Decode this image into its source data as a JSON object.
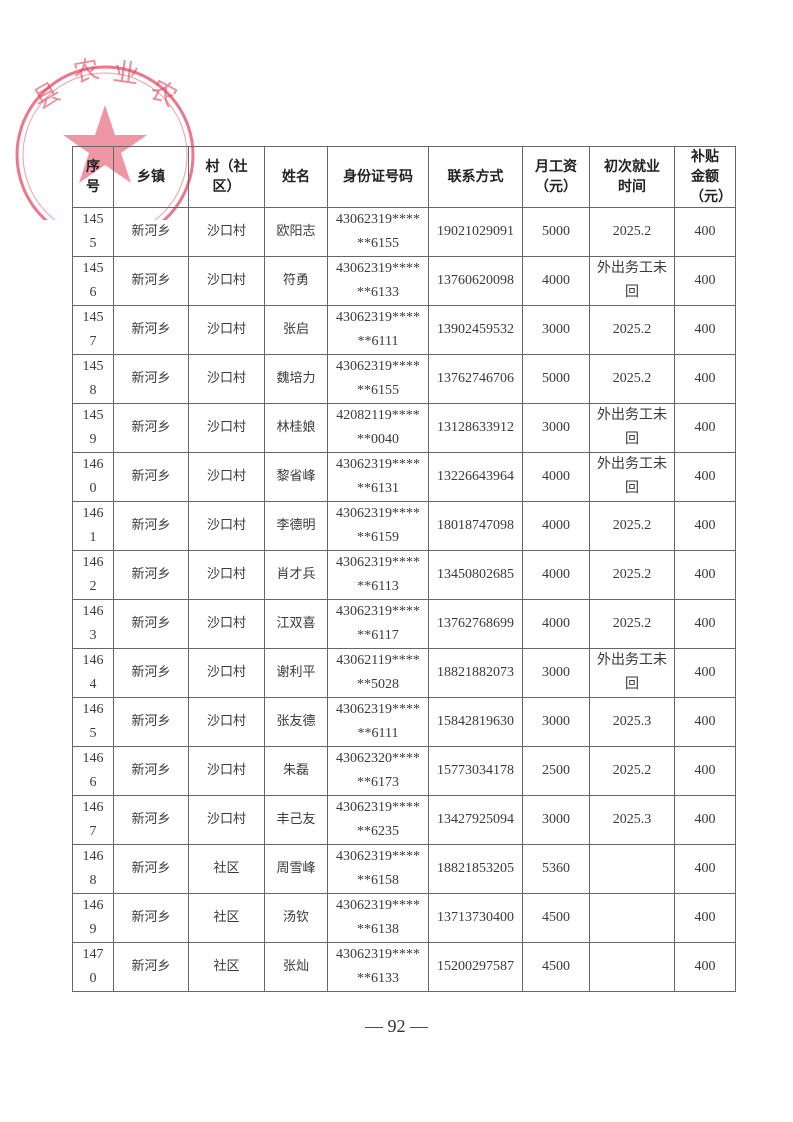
{
  "seal": {
    "text": "县农业农村",
    "color": "#e0405a"
  },
  "table": {
    "headers": [
      "序号",
      "乡镇",
      "村（社区）",
      "姓名",
      "身份证号码",
      "联系方式",
      "月工资（元）",
      "初次就业时间",
      "补贴金额（元）"
    ],
    "rows": [
      [
        "1455",
        "新河乡",
        "沙口村",
        "欧阳志",
        "43062319******6155",
        "19021029091",
        "5000",
        "2025.2",
        "400"
      ],
      [
        "1456",
        "新河乡",
        "沙口村",
        "符勇",
        "43062319******6133",
        "13760620098",
        "4000",
        "外出务工未回",
        "400"
      ],
      [
        "1457",
        "新河乡",
        "沙口村",
        "张启",
        "43062319******6111",
        "13902459532",
        "3000",
        "2025.2",
        "400"
      ],
      [
        "1458",
        "新河乡",
        "沙口村",
        "魏培力",
        "43062319******6155",
        "13762746706",
        "5000",
        "2025.2",
        "400"
      ],
      [
        "1459",
        "新河乡",
        "沙口村",
        "林桂娘",
        "42082119******0040",
        "13128633912",
        "3000",
        "外出务工未回",
        "400"
      ],
      [
        "1460",
        "新河乡",
        "沙口村",
        "黎省峰",
        "43062319******6131",
        "13226643964",
        "4000",
        "外出务工未回",
        "400"
      ],
      [
        "1461",
        "新河乡",
        "沙口村",
        "李德明",
        "43062319******6159",
        "18018747098",
        "4000",
        "2025.2",
        "400"
      ],
      [
        "1462",
        "新河乡",
        "沙口村",
        "肖才兵",
        "43062319******6113",
        "13450802685",
        "4000",
        "2025.2",
        "400"
      ],
      [
        "1463",
        "新河乡",
        "沙口村",
        "江双喜",
        "43062319******6117",
        "13762768699",
        "4000",
        "2025.2",
        "400"
      ],
      [
        "1464",
        "新河乡",
        "沙口村",
        "谢利平",
        "43062119******5028",
        "18821882073",
        "3000",
        "外出务工未回",
        "400"
      ],
      [
        "1465",
        "新河乡",
        "沙口村",
        "张友德",
        "43062319******6111",
        "15842819630",
        "3000",
        "2025.3",
        "400"
      ],
      [
        "1466",
        "新河乡",
        "沙口村",
        "朱磊",
        "43062320******6173",
        "15773034178",
        "2500",
        "2025.2",
        "400"
      ],
      [
        "1467",
        "新河乡",
        "沙口村",
        "丰己友",
        "43062319******6235",
        "13427925094",
        "3000",
        "2025.3",
        "400"
      ],
      [
        "1468",
        "新河乡",
        "社区",
        "周雪峰",
        "43062319******6158",
        "18821853205",
        "5360",
        "",
        "400"
      ],
      [
        "1469",
        "新河乡",
        "社区",
        "汤钦",
        "43062319******6138",
        "13713730400",
        "4500",
        "",
        "400"
      ],
      [
        "1470",
        "新河乡",
        "社区",
        "张灿",
        "43062319******6133",
        "15200297587",
        "4500",
        "",
        "400"
      ]
    ]
  },
  "page_number": "— 92 —"
}
